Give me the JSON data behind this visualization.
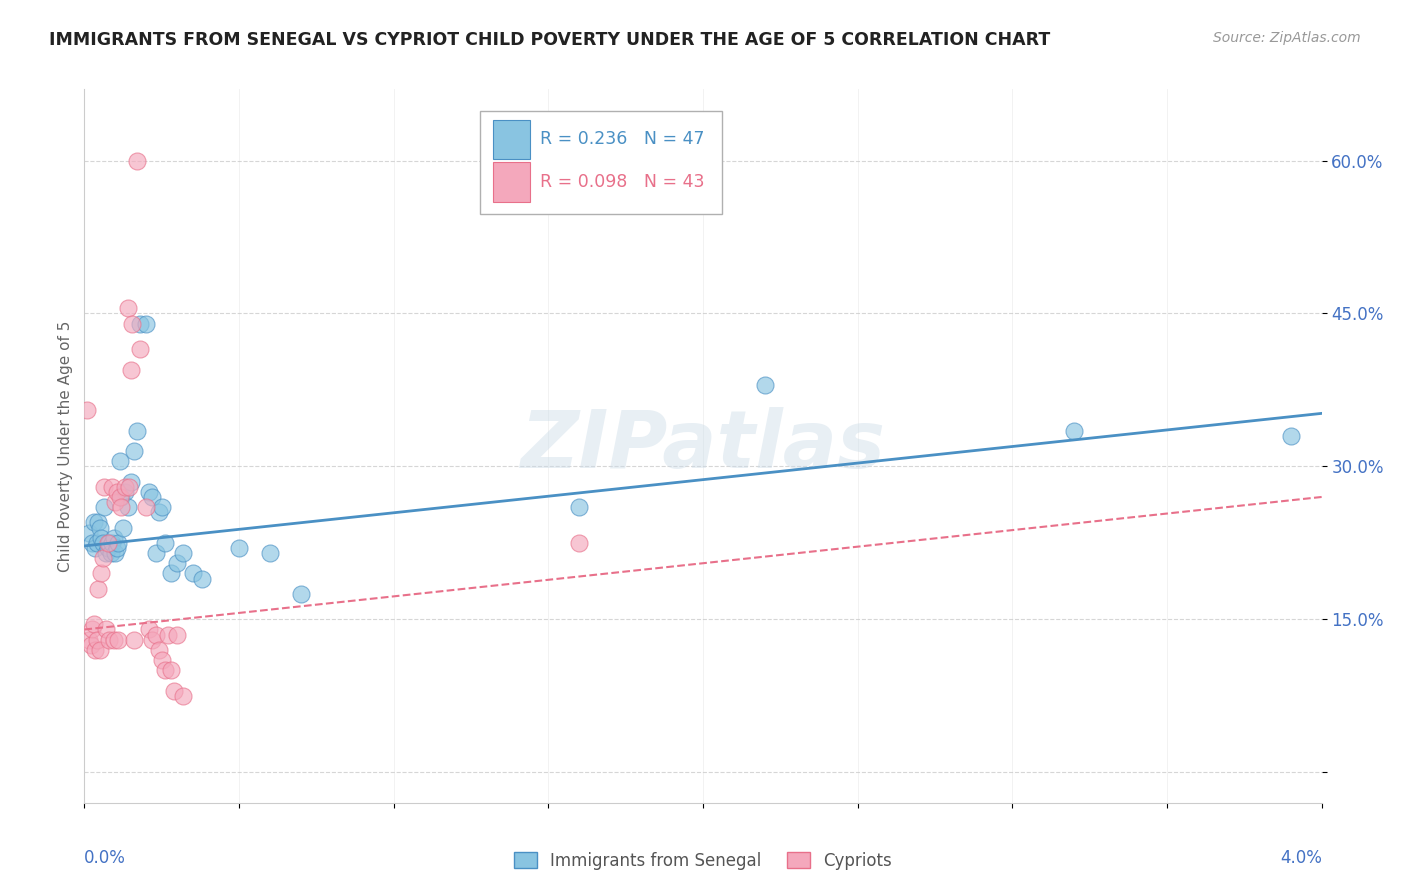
{
  "title": "IMMIGRANTS FROM SENEGAL VS CYPRIOT CHILD POVERTY UNDER THE AGE OF 5 CORRELATION CHART",
  "source": "Source: ZipAtlas.com",
  "ylabel": "Child Poverty Under the Age of 5",
  "yticks": [
    0.0,
    0.15,
    0.3,
    0.45,
    0.6
  ],
  "ytick_labels": [
    "",
    "15.0%",
    "30.0%",
    "45.0%",
    "60.0%"
  ],
  "xlim": [
    0.0,
    0.04
  ],
  "ylim": [
    -0.03,
    0.67
  ],
  "legend_r1": "R = 0.236",
  "legend_n1": "N = 47",
  "legend_r2": "R = 0.098",
  "legend_n2": "N = 43",
  "blue_color": "#89c4e1",
  "pink_color": "#f4a8bc",
  "blue_line_color": "#4a90c4",
  "pink_line_color": "#e8708a",
  "axis_label_color": "#4472c4",
  "watermark": "ZIPatlas",
  "senegal_x": [
    0.00015,
    0.00025,
    0.0003,
    0.00035,
    0.0004,
    0.00045,
    0.0005,
    0.00055,
    0.0006,
    0.00065,
    0.0007,
    0.00075,
    0.0008,
    0.00085,
    0.0009,
    0.00095,
    0.001,
    0.00105,
    0.0011,
    0.00115,
    0.0012,
    0.00125,
    0.0013,
    0.0014,
    0.0015,
    0.0016,
    0.0017,
    0.0018,
    0.002,
    0.0021,
    0.0022,
    0.0023,
    0.0024,
    0.0025,
    0.0026,
    0.0028,
    0.003,
    0.0032,
    0.0035,
    0.0038,
    0.005,
    0.006,
    0.007,
    0.016,
    0.022,
    0.032,
    0.039
  ],
  "senegal_y": [
    0.235,
    0.225,
    0.245,
    0.22,
    0.225,
    0.245,
    0.24,
    0.23,
    0.225,
    0.26,
    0.215,
    0.22,
    0.225,
    0.215,
    0.225,
    0.23,
    0.215,
    0.22,
    0.225,
    0.305,
    0.27,
    0.24,
    0.275,
    0.26,
    0.285,
    0.315,
    0.335,
    0.44,
    0.44,
    0.275,
    0.27,
    0.215,
    0.255,
    0.26,
    0.225,
    0.195,
    0.205,
    0.215,
    0.195,
    0.19,
    0.22,
    0.215,
    0.175,
    0.26,
    0.38,
    0.335,
    0.33
  ],
  "cypriot_x": [
    0.0001,
    0.00015,
    0.0002,
    0.00025,
    0.0003,
    0.00035,
    0.0004,
    0.00045,
    0.0005,
    0.00055,
    0.0006,
    0.00065,
    0.0007,
    0.00075,
    0.0008,
    0.0009,
    0.00095,
    0.001,
    0.00105,
    0.0011,
    0.00115,
    0.0012,
    0.0013,
    0.0014,
    0.00145,
    0.0015,
    0.00155,
    0.0016,
    0.0017,
    0.0018,
    0.002,
    0.0021,
    0.0022,
    0.0023,
    0.0024,
    0.0025,
    0.0026,
    0.0027,
    0.0028,
    0.0029,
    0.003,
    0.0032,
    0.016
  ],
  "cypriot_y": [
    0.355,
    0.13,
    0.125,
    0.14,
    0.145,
    0.12,
    0.13,
    0.18,
    0.12,
    0.195,
    0.21,
    0.28,
    0.14,
    0.225,
    0.13,
    0.28,
    0.13,
    0.265,
    0.275,
    0.13,
    0.27,
    0.26,
    0.28,
    0.455,
    0.28,
    0.395,
    0.44,
    0.13,
    0.6,
    0.415,
    0.26,
    0.14,
    0.13,
    0.135,
    0.12,
    0.11,
    0.1,
    0.135,
    0.1,
    0.08,
    0.135,
    0.075,
    0.225
  ]
}
